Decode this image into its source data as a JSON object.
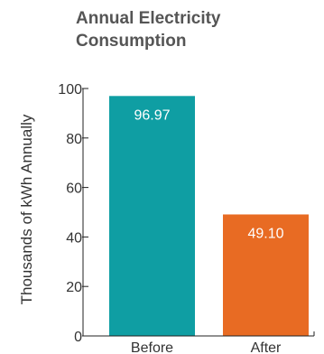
{
  "chart_data": {
    "type": "bar",
    "title_lines": [
      "Annual Electricity",
      "Consumption"
    ],
    "ylabel": "Thousands of kWh Annually",
    "xlabel": "",
    "categories": [
      "Before",
      "After"
    ],
    "values": [
      96.97,
      49.1
    ],
    "value_labels": [
      "96.97",
      "49.10"
    ],
    "bar_colors": [
      "#0f9ea3",
      "#e86b23"
    ],
    "ylim": [
      0,
      100
    ],
    "yticks": [
      0,
      20,
      40,
      60,
      80,
      100
    ],
    "grid": false,
    "legend": "none"
  },
  "colors": {
    "title": "#555555",
    "axis": "#222222",
    "axis_label": "#333333",
    "value_label": "#ffffff"
  }
}
